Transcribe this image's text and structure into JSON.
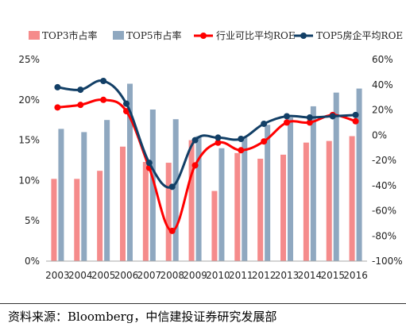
{
  "chart_data": {
    "type": "bar",
    "categories": [
      "2003",
      "2004",
      "2005",
      "2006",
      "2007",
      "2008",
      "2009",
      "2010",
      "2011",
      "2012",
      "2013",
      "2014",
      "2015",
      "2016"
    ],
    "series": [
      {
        "name": "TOP3市占率",
        "kind": "bar",
        "axis": "left",
        "color": "#f58b8b",
        "values": [
          10.2,
          10.2,
          11.2,
          14.2,
          12.3,
          12.2,
          15.0,
          8.7,
          13.4,
          12.7,
          13.2,
          14.7,
          14.9,
          15.5
        ]
      },
      {
        "name": "TOP5市占率",
        "kind": "bar",
        "axis": "left",
        "color": "#8fa8c0",
        "values": [
          16.4,
          16.0,
          17.5,
          22.0,
          18.8,
          17.6,
          15.5,
          14.0,
          15.3,
          16.9,
          17.8,
          19.2,
          20.9,
          21.4
        ]
      },
      {
        "name": "行业可比平均ROE",
        "kind": "line",
        "axis": "right",
        "color": "#ff0000",
        "values": [
          22,
          24,
          28,
          19,
          -26,
          -76,
          -24,
          -6,
          -12,
          -5,
          10,
          10,
          16,
          11
        ]
      },
      {
        "name": "TOP5房企平均ROE",
        "kind": "line",
        "axis": "right",
        "color": "#123f66",
        "values": [
          38,
          36,
          43,
          25,
          -22,
          -41,
          -4,
          -2,
          -3,
          9,
          15,
          14,
          15,
          16
        ]
      }
    ],
    "y_left": {
      "min": 0,
      "max": 25,
      "ticks": [
        "0%",
        "5%",
        "10%",
        "15%",
        "20%",
        "25%"
      ]
    },
    "y_right": {
      "min": -100,
      "max": 60,
      "ticks": [
        "-100%",
        "-80%",
        "-60%",
        "-40%",
        "-20%",
        "0%",
        "20%",
        "40%",
        "60%"
      ]
    },
    "legend_position": "top",
    "grid": false
  },
  "source_note": "资料来源：Bloomberg，中信建投证券研究发展部"
}
